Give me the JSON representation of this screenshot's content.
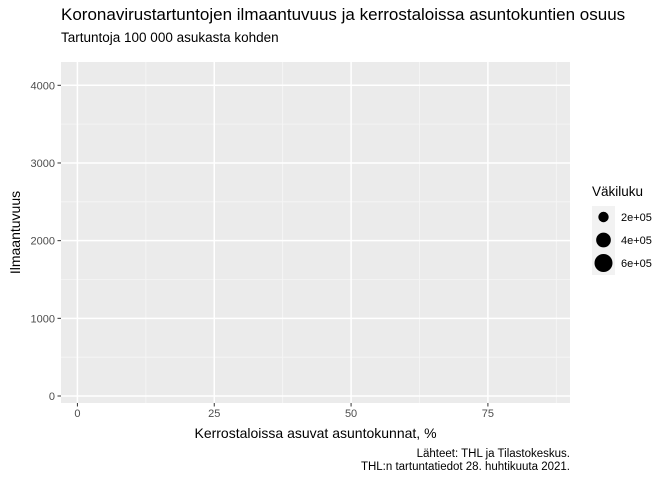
{
  "chart_data": {
    "type": "scatter",
    "title": "Koronavirustartuntojen ilmaantuvuus ja kerrostaloissa asuntokuntien osuus",
    "subtitle": "Tartuntoja 100 000 asukasta kohden",
    "xlabel": "Kerrostaloissa asuvat asuntokunnat, %",
    "ylabel": "Ilmaantuvuus",
    "xlim": [
      -3,
      90
    ],
    "ylim": [
      -90,
      4300
    ],
    "x_ticks": [
      0,
      25,
      50,
      75
    ],
    "x_tick_labels": [
      "0",
      "25",
      "50",
      "75"
    ],
    "x_minor_ticks": [
      12.5,
      37.5,
      62.5,
      87.5
    ],
    "y_ticks": [
      0,
      1000,
      2000,
      3000,
      4000
    ],
    "y_tick_labels": [
      "0",
      "1000",
      "2000",
      "3000",
      "4000"
    ],
    "y_minor_ticks": [
      500,
      1500,
      2500,
      3500
    ],
    "points": [],
    "grid": true,
    "legend": {
      "title": "Väkiluku",
      "position": "right",
      "entries": [
        {
          "label": "2e+05",
          "value": 200000
        },
        {
          "label": "4e+05",
          "value": 400000
        },
        {
          "label": "6e+05",
          "value": 600000
        }
      ]
    },
    "caption_lines": [
      "Lähteet: THL ja Tilastokeskus.",
      "THL:n tartuntatiedot 28. huhtikuuta 2021."
    ],
    "colors": {
      "panel_background": "#ebebeb",
      "grid_major": "#ffffff",
      "grid_minor": "#f6f6f6",
      "tick_text": "#4d4d4d",
      "point": "#000000"
    }
  }
}
